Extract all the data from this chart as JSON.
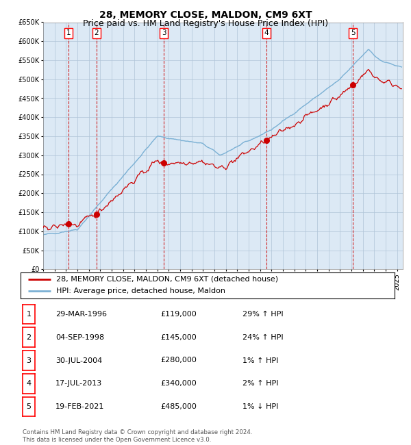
{
  "title": "28, MEMORY CLOSE, MALDON, CM9 6XT",
  "subtitle": "Price paid vs. HM Land Registry's House Price Index (HPI)",
  "title_fontsize": 10,
  "subtitle_fontsize": 9,
  "background_color": "#dce9f5",
  "plot_bg_color": "#dce9f5",
  "ylim": [
    0,
    650000
  ],
  "yticks": [
    0,
    50000,
    100000,
    150000,
    200000,
    250000,
    300000,
    350000,
    400000,
    450000,
    500000,
    550000,
    600000,
    650000
  ],
  "xlim_start": 1994.0,
  "xlim_end": 2025.5,
  "sales": [
    {
      "label": "1",
      "date_num": 1996.24,
      "price": 119000
    },
    {
      "label": "2",
      "date_num": 1998.67,
      "price": 145000
    },
    {
      "label": "3",
      "date_num": 2004.57,
      "price": 280000
    },
    {
      "label": "4",
      "date_num": 2013.54,
      "price": 340000
    },
    {
      "label": "5",
      "date_num": 2021.13,
      "price": 485000
    }
  ],
  "legend_line1": "28, MEMORY CLOSE, MALDON, CM9 6XT (detached house)",
  "legend_line2": "HPI: Average price, detached house, Maldon",
  "table_rows": [
    [
      "1",
      "29-MAR-1996",
      "£119,000",
      "29% ↑ HPI"
    ],
    [
      "2",
      "04-SEP-1998",
      "£145,000",
      "24% ↑ HPI"
    ],
    [
      "3",
      "30-JUL-2004",
      "£280,000",
      "1% ↑ HPI"
    ],
    [
      "4",
      "17-JUL-2013",
      "£340,000",
      "2% ↑ HPI"
    ],
    [
      "5",
      "19-FEB-2021",
      "£485,000",
      "1% ↓ HPI"
    ]
  ],
  "footer": "Contains HM Land Registry data © Crown copyright and database right 2024.\nThis data is licensed under the Open Government Licence v3.0.",
  "hpi_color": "#7ab0d4",
  "price_color": "#cc0000",
  "marker_color": "#cc0000",
  "vline_color": "#cc0000",
  "grid_color": "#b0c4d8"
}
